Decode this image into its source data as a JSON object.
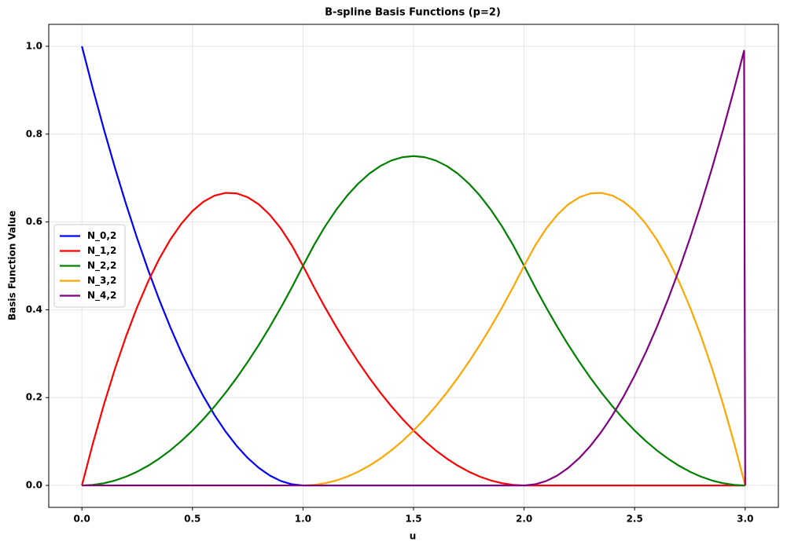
{
  "chart_data": {
    "type": "line",
    "title": "B-spline Basis Functions (p=2)",
    "xlabel": "u",
    "ylabel": "Basis Function Value",
    "x": [
      0,
      0.05,
      0.1,
      0.15,
      0.2,
      0.25,
      0.3,
      0.35,
      0.4,
      0.45,
      0.5,
      0.55,
      0.6,
      0.65,
      0.7,
      0.75,
      0.8,
      0.85,
      0.9,
      0.95,
      1,
      1.05,
      1.1,
      1.15,
      1.2,
      1.25,
      1.3,
      1.35,
      1.4,
      1.45,
      1.5,
      1.55,
      1.6,
      1.65,
      1.7,
      1.75,
      1.8,
      1.85,
      1.9,
      1.95,
      2,
      2.05,
      2.1,
      2.15,
      2.2,
      2.25,
      2.3,
      2.35,
      2.4,
      2.45,
      2.5,
      2.55,
      2.6,
      2.65,
      2.7,
      2.75,
      2.8,
      2.85,
      2.9,
      2.95,
      2.995,
      3
    ],
    "series": [
      {
        "name": "N_0,2",
        "color": "#0000ff",
        "values": [
          1,
          0.9025,
          0.81,
          0.7225,
          0.64,
          0.5625,
          0.49,
          0.4225,
          0.36,
          0.3025,
          0.25,
          0.2025,
          0.16,
          0.1225,
          0.09,
          0.0625,
          0.04,
          0.0225,
          0.01,
          0.0025,
          0,
          0,
          0,
          0,
          0,
          0,
          0,
          0,
          0,
          0,
          0,
          0,
          0,
          0,
          0,
          0,
          0,
          0,
          0,
          0,
          0,
          0,
          0,
          0,
          0,
          0,
          0,
          0,
          0,
          0,
          0,
          0,
          0,
          0,
          0,
          0,
          0,
          0,
          0,
          0,
          0,
          0
        ]
      },
      {
        "name": "N_1,2",
        "color": "#ff0000",
        "values": [
          0,
          0.09625,
          0.185,
          0.26625,
          0.34,
          0.40625,
          0.465,
          0.51625,
          0.56,
          0.59625,
          0.625,
          0.64625,
          0.66,
          0.66625,
          0.665,
          0.65625,
          0.64,
          0.61625,
          0.585,
          0.54625,
          0.5,
          0.45125,
          0.405,
          0.36125,
          0.32,
          0.28125,
          0.245,
          0.21125,
          0.18,
          0.15125,
          0.125,
          0.10125,
          0.08,
          0.06125,
          0.045,
          0.03125,
          0.02,
          0.01125,
          0.005,
          0.00125,
          0,
          0,
          0,
          0,
          0,
          0,
          0,
          0,
          0,
          0,
          0,
          0,
          0,
          0,
          0,
          0,
          0,
          0,
          0,
          0,
          0,
          0
        ]
      },
      {
        "name": "N_2,2",
        "color": "#008000",
        "values": [
          0,
          0.00125,
          0.005,
          0.01125,
          0.02,
          0.03125,
          0.045,
          0.06125,
          0.08,
          0.10125,
          0.125,
          0.15125,
          0.18,
          0.21125,
          0.245,
          0.28125,
          0.32,
          0.36125,
          0.405,
          0.45125,
          0.5,
          0.5475,
          0.59,
          0.6275,
          0.66,
          0.6875,
          0.71,
          0.7275,
          0.74,
          0.7475,
          0.75,
          0.7475,
          0.74,
          0.7275,
          0.71,
          0.6875,
          0.66,
          0.6275,
          0.59,
          0.5475,
          0.5,
          0.45125,
          0.405,
          0.36125,
          0.32,
          0.28125,
          0.245,
          0.21125,
          0.18,
          0.15125,
          0.125,
          0.10125,
          0.08,
          0.06125,
          0.045,
          0.03125,
          0.02,
          0.01125,
          0.005,
          0.00125,
          0,
          0
        ]
      },
      {
        "name": "N_3,2",
        "color": "#ffa500",
        "values": [
          0,
          0,
          0,
          0,
          0,
          0,
          0,
          0,
          0,
          0,
          0,
          0,
          0,
          0,
          0,
          0,
          0,
          0,
          0,
          0,
          0,
          0.00125,
          0.005,
          0.01125,
          0.02,
          0.03125,
          0.045,
          0.06125,
          0.08,
          0.10125,
          0.125,
          0.15125,
          0.18,
          0.21125,
          0.245,
          0.28125,
          0.32,
          0.36125,
          0.405,
          0.45125,
          0.5,
          0.54625,
          0.585,
          0.61625,
          0.64,
          0.65625,
          0.665,
          0.66625,
          0.66,
          0.64625,
          0.625,
          0.59625,
          0.56,
          0.51625,
          0.465,
          0.40625,
          0.34,
          0.26625,
          0.185,
          0.09625,
          0.00996,
          0
        ]
      },
      {
        "name": "N_4,2",
        "color": "#800080",
        "values": [
          0,
          0,
          0,
          0,
          0,
          0,
          0,
          0,
          0,
          0,
          0,
          0,
          0,
          0,
          0,
          0,
          0,
          0,
          0,
          0,
          0,
          0,
          0,
          0,
          0,
          0,
          0,
          0,
          0,
          0,
          0,
          0,
          0,
          0,
          0,
          0,
          0,
          0,
          0,
          0,
          0,
          0.0025,
          0.01,
          0.0225,
          0.04,
          0.0625,
          0.09,
          0.1225,
          0.16,
          0.2025,
          0.25,
          0.3025,
          0.36,
          0.4225,
          0.49,
          0.5625,
          0.64,
          0.7225,
          0.81,
          0.9025,
          0.99,
          0
        ]
      }
    ],
    "xlim": [
      -0.15,
      3.15
    ],
    "ylim": [
      -0.05,
      1.05
    ],
    "xticks": [
      {
        "value": 0,
        "label": "0.0"
      },
      0.5,
      {
        "value": 1,
        "label": "1.0"
      },
      1.5,
      {
        "value": 2,
        "label": "2.0"
      },
      2.5,
      {
        "value": 3,
        "label": "3.0"
      }
    ],
    "yticks": [
      {
        "value": 0,
        "label": "0.0"
      },
      0.2,
      0.4,
      0.6,
      0.8,
      {
        "value": 1,
        "label": "1.0"
      }
    ],
    "grid": true,
    "legend": "center left"
  }
}
